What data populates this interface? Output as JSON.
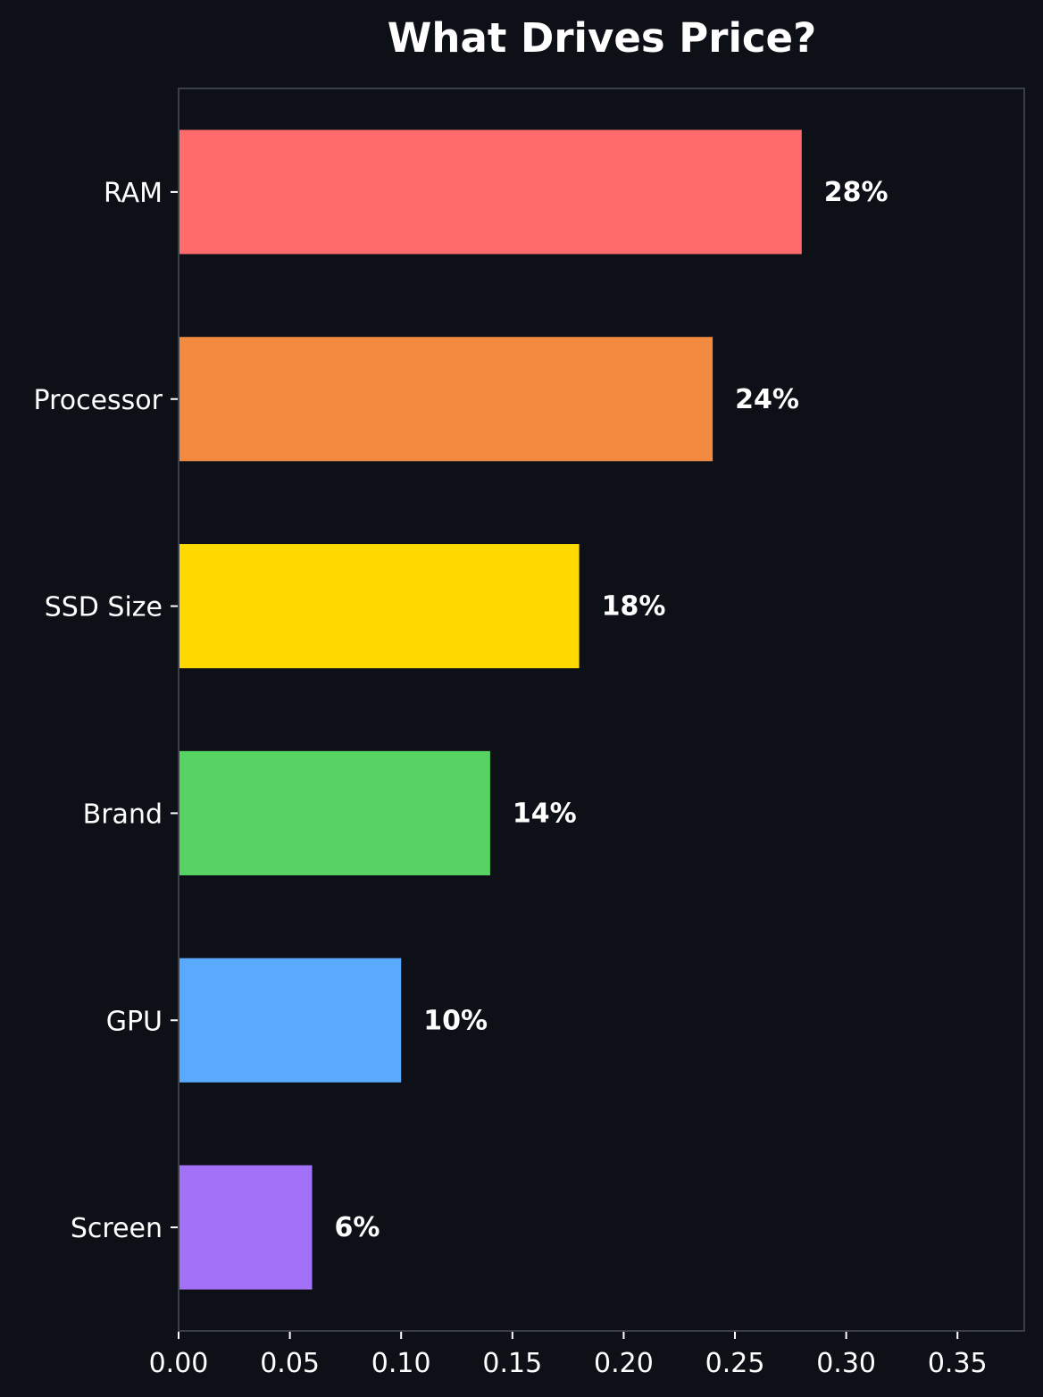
{
  "chart_data": {
    "type": "bar",
    "orientation": "horizontal",
    "title": "What Drives Price?",
    "xlabel": "",
    "ylabel": "",
    "categories": [
      "RAM",
      "Processor",
      "SSD Size",
      "Brand",
      "GPU",
      "Screen"
    ],
    "values": [
      0.28,
      0.24,
      0.18,
      0.14,
      0.1,
      0.06
    ],
    "data_labels": [
      "28%",
      "24%",
      "18%",
      "14%",
      "10%",
      "6%"
    ],
    "bar_colors": [
      "#ff6b6b",
      "#f28a3f",
      "#ffd900",
      "#57d364",
      "#59a9ff",
      "#a371f7"
    ],
    "xlim": [
      0,
      0.38
    ],
    "xticks": [
      0.0,
      0.05,
      0.1,
      0.15,
      0.2,
      0.25,
      0.3,
      0.35
    ],
    "xtick_labels": [
      "0.00",
      "0.05",
      "0.10",
      "0.15",
      "0.20",
      "0.25",
      "0.30",
      "0.35"
    ],
    "grid": false,
    "legend": "none",
    "background_color": "#0d1017",
    "frame_color": "#3a3f47",
    "text_color": "#ffffff"
  }
}
